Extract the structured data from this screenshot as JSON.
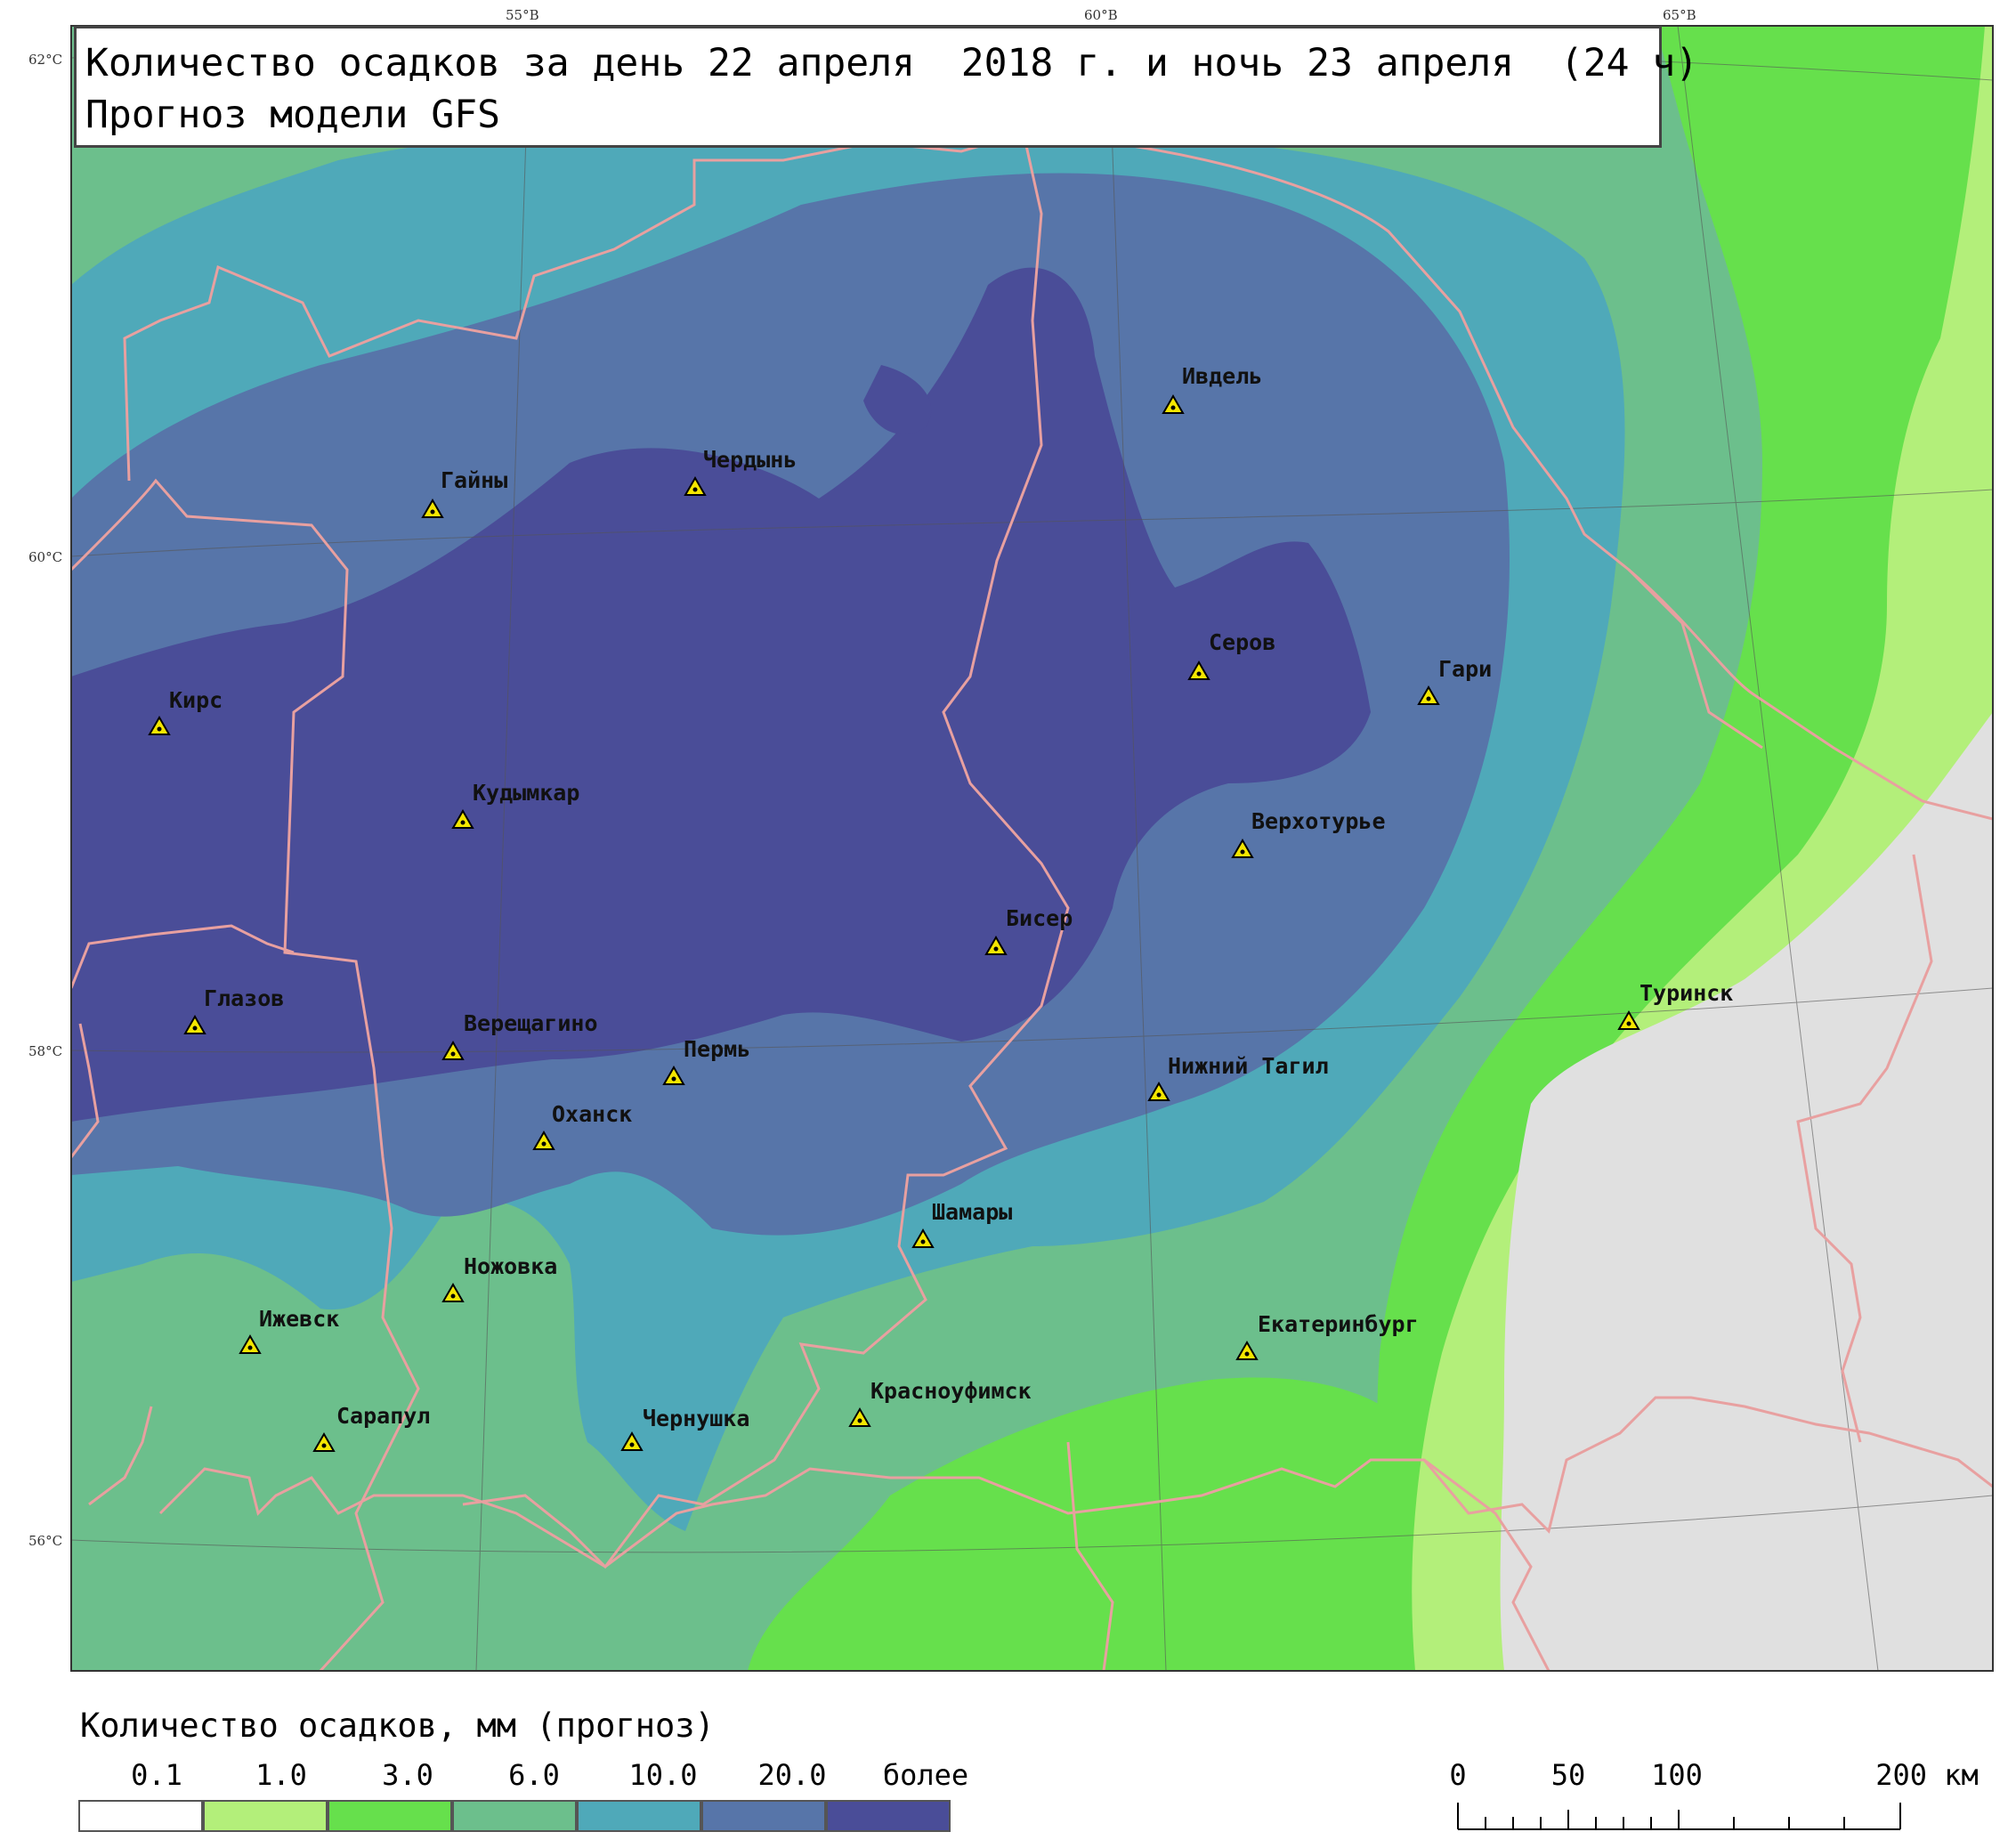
{
  "title": {
    "line1": "Количество осадков за день 22 апреля  2018 г. и ночь 23 апреля  (24 ч)",
    "line2": "Прогноз модели GFS"
  },
  "grid_labels": {
    "lon": [
      "55°В",
      "60°В",
      "65°В"
    ],
    "lat": [
      "62°С",
      "60°С",
      "58°С",
      "56°С"
    ]
  },
  "cities": [
    {
      "name": "Ивдель"
    },
    {
      "name": "Гайны"
    },
    {
      "name": "Чердынь"
    },
    {
      "name": "Серов"
    },
    {
      "name": "Гари"
    },
    {
      "name": "Кирс"
    },
    {
      "name": "Кудымкар"
    },
    {
      "name": "Верхотурье"
    },
    {
      "name": "Бисер"
    },
    {
      "name": "Глазов"
    },
    {
      "name": "Верещагино"
    },
    {
      "name": "Пермь"
    },
    {
      "name": "Туринск"
    },
    {
      "name": "Нижний Тагил"
    },
    {
      "name": "Оханск"
    },
    {
      "name": "Шамары"
    },
    {
      "name": "Ножовка"
    },
    {
      "name": "Ижевск"
    },
    {
      "name": "Екатеринбург"
    },
    {
      "name": "Красноуфимск"
    },
    {
      "name": "Сарапул"
    },
    {
      "name": "Чернушка"
    }
  ],
  "legend": {
    "title": "Количество осадков, мм (прогноз)",
    "labels": [
      "0.1",
      "1.0",
      "3.0",
      "6.0",
      "10.0",
      "20.0",
      "более"
    ],
    "colors": [
      "#ffffff",
      "#b3ef7a",
      "#66e04c",
      "#6cbf8c",
      "#4fa9b9",
      "#5775a9",
      "#4a4d98"
    ]
  },
  "scale_bar": {
    "labels": [
      "0",
      "50",
      "100",
      "200 км"
    ]
  },
  "colors": {
    "level_0": "#e0e0e0",
    "level_1": "#b3ef7a",
    "level_2": "#66e04c",
    "level_3": "#6cbf8c",
    "level_4": "#4fa9b9",
    "level_5": "#5775a9",
    "level_6": "#4a4d98",
    "border": "#e8a0a0",
    "marker": "#f4e600"
  }
}
